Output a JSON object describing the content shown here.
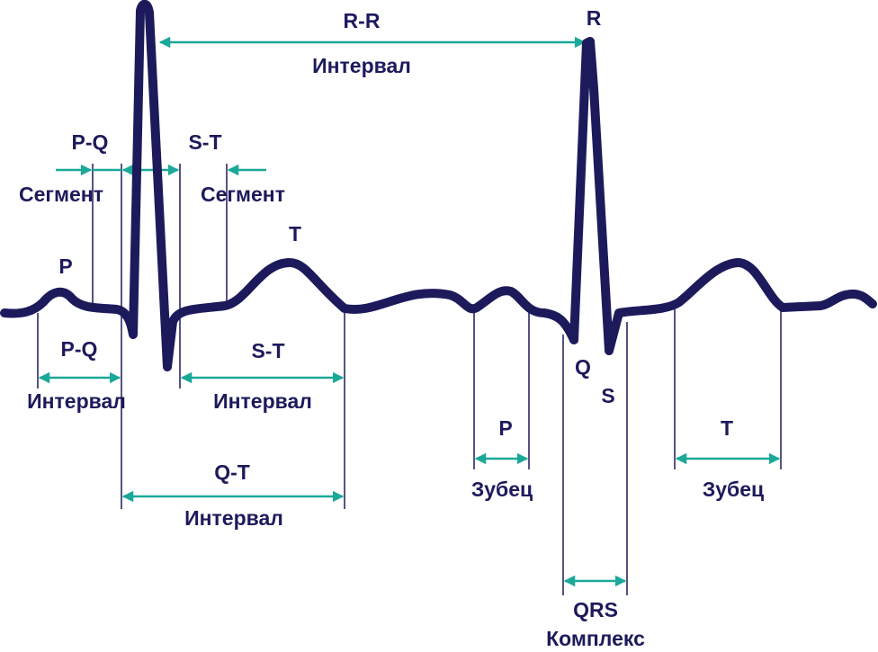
{
  "labels": {
    "rr": "R-R",
    "rr_interval": "Интервал",
    "r": "R",
    "pq_segment_name": "P-Q",
    "pq_segment": "Сегмент",
    "st_segment_name": "S-T",
    "st_segment": "Сегмент",
    "t_wave_top": "T",
    "p_wave_top": "P",
    "pq_interval_name": "P-Q",
    "pq_interval": "Интервал",
    "st_interval_name": "S-T",
    "st_interval": "Интервал",
    "q": "Q",
    "s": "S",
    "p_wave_name": "P",
    "p_wave": "Зубец",
    "t_wave_name": "T",
    "t_wave": "Зубец",
    "qt_interval_name": "Q-T",
    "qt_interval": "Интервал",
    "qrs_name": "QRS",
    "qrs": "Комплекс"
  }
}
